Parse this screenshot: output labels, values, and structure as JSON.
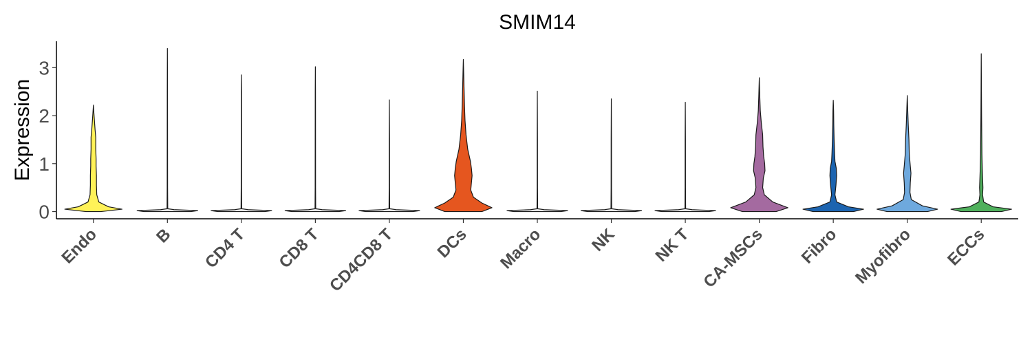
{
  "chart_data": {
    "type": "violin",
    "title": "SMIM14",
    "xlabel": "",
    "ylabel": "Expression",
    "ylim": [
      -0.15,
      3.55
    ],
    "yticks": [
      0,
      1,
      2,
      3
    ],
    "grid": false,
    "legend": "none",
    "categories": [
      "Endo",
      "B",
      "CD4 T",
      "CD8 T",
      "CD4CD8 T",
      "DCs",
      "Macro",
      "NK",
      "NK T",
      "CA-MSCs",
      "Fibro",
      "Myofibro",
      "ECCs"
    ],
    "colors": [
      "#FFF258",
      "#E8E8E8",
      "#E8E8E8",
      "#E8E8E8",
      "#E8E8E8",
      "#E5561F",
      "#E8E8E8",
      "#E8E8E8",
      "#E8E8E8",
      "#A46AA0",
      "#1C64B0",
      "#6EA9DE",
      "#4FB05C"
    ],
    "max_expression": [
      2.22,
      3.4,
      2.85,
      3.02,
      2.33,
      3.17,
      2.51,
      2.35,
      2.28,
      2.79,
      2.32,
      2.42,
      3.29
    ],
    "density": [
      [
        [
          0,
          0.22
        ],
        [
          0.05,
          0.85
        ],
        [
          0.1,
          0.45
        ],
        [
          0.2,
          0.16
        ],
        [
          0.35,
          0.1
        ],
        [
          0.55,
          0.09
        ],
        [
          0.75,
          0.09
        ],
        [
          0.95,
          0.08
        ],
        [
          1.1,
          0.08
        ],
        [
          1.3,
          0.07
        ],
        [
          1.55,
          0.07
        ],
        [
          1.7,
          0.05
        ],
        [
          1.9,
          0.03
        ],
        [
          2.05,
          0.015
        ],
        [
          2.22,
          0
        ]
      ],
      [
        [
          0,
          0.7
        ],
        [
          0.02,
          0.9
        ],
        [
          0.04,
          0.2
        ],
        [
          0.06,
          0.01
        ],
        [
          0.5,
          0.006
        ],
        [
          1.5,
          0.005
        ],
        [
          2.5,
          0.004
        ],
        [
          3.4,
          0
        ]
      ],
      [
        [
          0,
          0.7
        ],
        [
          0.02,
          0.9
        ],
        [
          0.04,
          0.2
        ],
        [
          0.06,
          0.01
        ],
        [
          0.5,
          0.006
        ],
        [
          1.5,
          0.005
        ],
        [
          2.5,
          0.004
        ],
        [
          2.85,
          0
        ]
      ],
      [
        [
          0,
          0.7
        ],
        [
          0.02,
          0.9
        ],
        [
          0.04,
          0.2
        ],
        [
          0.06,
          0.01
        ],
        [
          0.5,
          0.006
        ],
        [
          1.5,
          0.005
        ],
        [
          2.5,
          0.004
        ],
        [
          3.02,
          0
        ]
      ],
      [
        [
          0,
          0.7
        ],
        [
          0.02,
          0.9
        ],
        [
          0.04,
          0.2
        ],
        [
          0.06,
          0.01
        ],
        [
          0.5,
          0.006
        ],
        [
          1.5,
          0.005
        ],
        [
          2.33,
          0
        ]
      ],
      [
        [
          0,
          0.55
        ],
        [
          0.08,
          0.85
        ],
        [
          0.18,
          0.55
        ],
        [
          0.3,
          0.3
        ],
        [
          0.45,
          0.22
        ],
        [
          0.6,
          0.24
        ],
        [
          0.75,
          0.26
        ],
        [
          0.9,
          0.24
        ],
        [
          1.05,
          0.21
        ],
        [
          1.3,
          0.13
        ],
        [
          1.6,
          0.08
        ],
        [
          1.9,
          0.05
        ],
        [
          2.2,
          0.035
        ],
        [
          2.6,
          0.02
        ],
        [
          2.9,
          0.01
        ],
        [
          3.17,
          0
        ]
      ],
      [
        [
          0,
          0.7
        ],
        [
          0.02,
          0.9
        ],
        [
          0.04,
          0.2
        ],
        [
          0.06,
          0.01
        ],
        [
          0.5,
          0.006
        ],
        [
          1.5,
          0.005
        ],
        [
          2.51,
          0
        ]
      ],
      [
        [
          0,
          0.7
        ],
        [
          0.02,
          0.9
        ],
        [
          0.04,
          0.2
        ],
        [
          0.06,
          0.01
        ],
        [
          0.5,
          0.006
        ],
        [
          1.5,
          0.005
        ],
        [
          2.35,
          0
        ]
      ],
      [
        [
          0,
          0.7
        ],
        [
          0.02,
          0.9
        ],
        [
          0.04,
          0.2
        ],
        [
          0.06,
          0.01
        ],
        [
          0.5,
          0.006
        ],
        [
          1.5,
          0.005
        ],
        [
          2.28,
          0
        ]
      ],
      [
        [
          0,
          0.5
        ],
        [
          0.08,
          0.85
        ],
        [
          0.2,
          0.4
        ],
        [
          0.35,
          0.15
        ],
        [
          0.5,
          0.1
        ],
        [
          0.7,
          0.12
        ],
        [
          0.85,
          0.17
        ],
        [
          1.0,
          0.16
        ],
        [
          1.15,
          0.13
        ],
        [
          1.35,
          0.11
        ],
        [
          1.6,
          0.1
        ],
        [
          1.85,
          0.06
        ],
        [
          2.1,
          0.03
        ],
        [
          2.4,
          0.015
        ],
        [
          2.79,
          0
        ]
      ],
      [
        [
          0,
          0.6
        ],
        [
          0.05,
          0.9
        ],
        [
          0.1,
          0.45
        ],
        [
          0.2,
          0.1
        ],
        [
          0.35,
          0.05
        ],
        [
          0.55,
          0.08
        ],
        [
          0.75,
          0.1
        ],
        [
          0.9,
          0.09
        ],
        [
          1.05,
          0.05
        ],
        [
          1.2,
          0.04
        ],
        [
          1.5,
          0.025
        ],
        [
          1.8,
          0.015
        ],
        [
          2.1,
          0.01
        ],
        [
          2.32,
          0
        ]
      ],
      [
        [
          0,
          0.6
        ],
        [
          0.05,
          0.9
        ],
        [
          0.12,
          0.45
        ],
        [
          0.25,
          0.12
        ],
        [
          0.4,
          0.08
        ],
        [
          0.6,
          0.09
        ],
        [
          0.8,
          0.11
        ],
        [
          0.95,
          0.09
        ],
        [
          1.2,
          0.06
        ],
        [
          1.5,
          0.05
        ],
        [
          1.8,
          0.03
        ],
        [
          2.1,
          0.015
        ],
        [
          2.42,
          0
        ]
      ],
      [
        [
          0,
          0.6
        ],
        [
          0.05,
          0.9
        ],
        [
          0.1,
          0.35
        ],
        [
          0.2,
          0.07
        ],
        [
          0.35,
          0.04
        ],
        [
          0.5,
          0.05
        ],
        [
          0.7,
          0.04
        ],
        [
          0.9,
          0.03
        ],
        [
          1.2,
          0.02
        ],
        [
          1.6,
          0.015
        ],
        [
          2.0,
          0.01
        ],
        [
          2.5,
          0.006
        ],
        [
          3.29,
          0
        ]
      ]
    ]
  }
}
